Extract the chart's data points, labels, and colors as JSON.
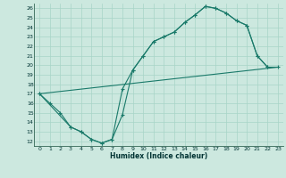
{
  "xlabel": "Humidex (Indice chaleur)",
  "bg_color": "#cce8df",
  "grid_color": "#a8d4c8",
  "line_color": "#1a7a6a",
  "xlim": [
    -0.5,
    23.5
  ],
  "ylim": [
    11.5,
    26.5
  ],
  "xticks": [
    0,
    1,
    2,
    3,
    4,
    5,
    6,
    7,
    8,
    9,
    10,
    11,
    12,
    13,
    14,
    15,
    16,
    17,
    18,
    19,
    20,
    21,
    22,
    23
  ],
  "yticks": [
    12,
    13,
    14,
    15,
    16,
    17,
    18,
    19,
    20,
    21,
    22,
    23,
    24,
    25,
    26
  ],
  "line1_x": [
    0,
    1,
    2,
    3,
    4,
    5,
    6,
    7,
    8,
    9,
    10,
    11,
    12,
    13,
    14,
    15,
    16,
    17,
    18,
    19,
    20,
    21,
    22
  ],
  "line1_y": [
    17.0,
    16.0,
    15.0,
    13.5,
    13.0,
    12.2,
    11.8,
    12.2,
    17.5,
    19.5,
    21.0,
    22.5,
    23.0,
    23.5,
    24.5,
    25.3,
    26.2,
    26.0,
    25.5,
    24.7,
    24.2,
    21.0,
    19.8
  ],
  "line2_x": [
    0,
    3,
    4,
    5,
    6,
    7,
    8,
    9,
    10,
    11,
    12,
    13,
    14,
    15,
    16,
    17,
    18,
    19,
    20,
    21,
    22,
    23
  ],
  "line2_y": [
    17.0,
    13.5,
    13.0,
    12.2,
    11.8,
    12.2,
    14.8,
    19.5,
    21.0,
    22.5,
    23.0,
    23.5,
    24.5,
    25.3,
    26.2,
    26.0,
    25.5,
    24.7,
    24.2,
    21.0,
    19.8,
    19.8
  ],
  "line3_x": [
    0,
    23
  ],
  "line3_y": [
    17.0,
    19.8
  ]
}
